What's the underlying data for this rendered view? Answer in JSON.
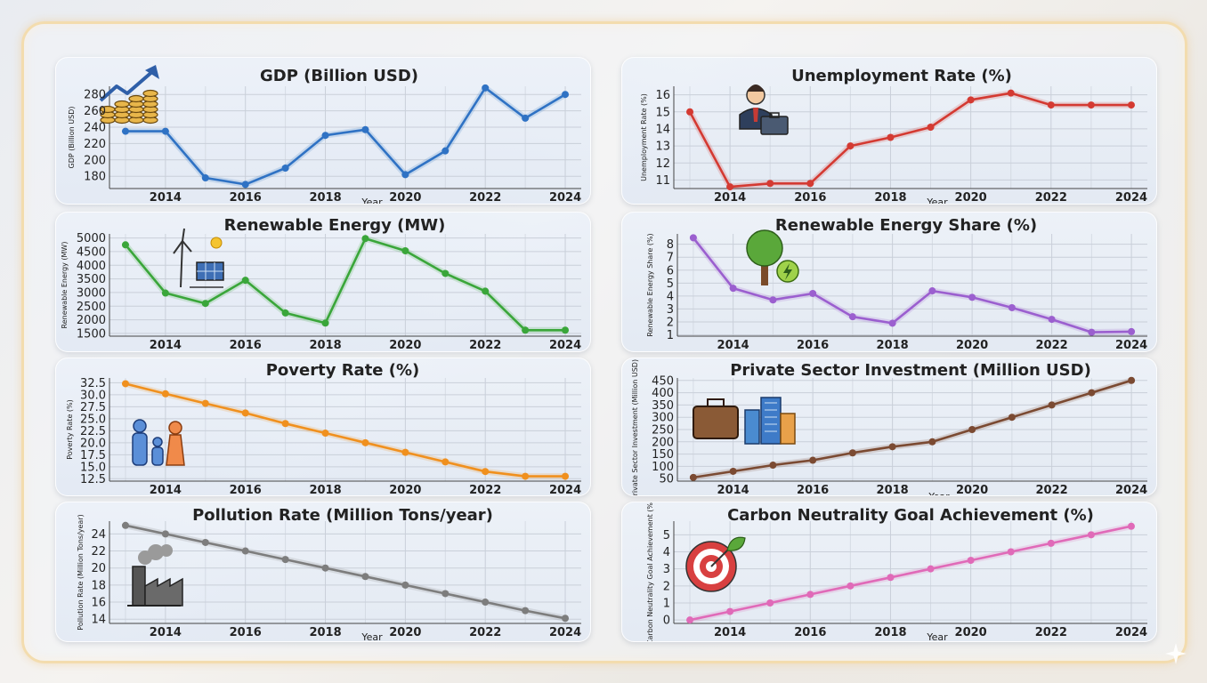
{
  "chart_data": [
    {
      "id": "gdp",
      "type": "line",
      "title": "GDP (Billion USD)",
      "xlabel": "Year",
      "ylabel": "GDP (Billion USD)",
      "color": "#2f72c4",
      "icon": "coins-growth-icon",
      "x": [
        2013,
        2014,
        2015,
        2016,
        2017,
        2018,
        2019,
        2020,
        2021,
        2022,
        2023,
        2024
      ],
      "values": [
        235,
        235,
        178,
        170,
        190,
        230,
        237,
        182,
        211,
        288,
        251,
        280
      ],
      "ylim": [
        165,
        290
      ],
      "yticks": [
        180,
        200,
        220,
        240,
        260,
        280
      ],
      "xticks": [
        2014,
        2016,
        2018,
        2020,
        2022,
        2024
      ],
      "grid": true
    },
    {
      "id": "unemployment",
      "type": "line",
      "title": "Unemployment Rate (%)",
      "xlabel": "Year",
      "ylabel": "Unemployment Rate (%)",
      "color": "#d43a32",
      "icon": "businessman-icon",
      "x": [
        2013,
        2014,
        2015,
        2016,
        2017,
        2018,
        2019,
        2020,
        2021,
        2022,
        2023,
        2024
      ],
      "values": [
        15.0,
        10.6,
        10.8,
        10.8,
        13.0,
        13.5,
        14.1,
        15.7,
        16.1,
        15.4,
        15.4,
        15.4
      ],
      "ylim": [
        10.5,
        16.5
      ],
      "yticks": [
        11,
        12,
        13,
        14,
        15,
        16
      ],
      "xticks": [
        2014,
        2016,
        2018,
        2020,
        2022,
        2024
      ],
      "grid": true
    },
    {
      "id": "renewable-energy",
      "type": "line",
      "title": "Renewable Energy (MW)",
      "xlabel": "Year",
      "ylabel": "Renewable Energy (MW)",
      "color": "#3aa63a",
      "icon": "wind-solar-icon",
      "x": [
        2013,
        2014,
        2015,
        2016,
        2017,
        2018,
        2019,
        2020,
        2021,
        2022,
        2023,
        2024
      ],
      "values": [
        4750,
        2980,
        2600,
        3450,
        2250,
        1880,
        4980,
        4530,
        3700,
        3050,
        1620,
        1620
      ],
      "ylim": [
        1400,
        5150
      ],
      "yticks": [
        1500,
        2000,
        2500,
        3000,
        3500,
        4000,
        4500,
        5000
      ],
      "xticks": [
        2014,
        2016,
        2018,
        2020,
        2022,
        2024
      ],
      "grid": true
    },
    {
      "id": "renewable-share",
      "type": "line",
      "title": "Renewable Energy Share (%)",
      "xlabel": "",
      "ylabel": "Renewable Energy Share (%)",
      "color": "#9b5fcf",
      "icon": "tree-energy-icon",
      "x": [
        2013,
        2014,
        2015,
        2016,
        2017,
        2018,
        2019,
        2020,
        2021,
        2022,
        2023,
        2024
      ],
      "values": [
        8.5,
        4.6,
        3.7,
        4.2,
        2.4,
        1.9,
        4.4,
        3.9,
        3.1,
        2.2,
        1.2,
        1.25
      ],
      "ylim": [
        0.9,
        8.8
      ],
      "yticks": [
        1,
        2,
        3,
        4,
        5,
        6,
        7,
        8
      ],
      "xticks": [
        2014,
        2016,
        2018,
        2020,
        2022,
        2024
      ],
      "grid": true
    },
    {
      "id": "poverty",
      "type": "line",
      "title": "Poverty Rate (%)",
      "xlabel": "",
      "ylabel": "Poverty Rate (%)",
      "color": "#f0901e",
      "icon": "family-icon",
      "x": [
        2013,
        2014,
        2015,
        2016,
        2017,
        2018,
        2019,
        2020,
        2021,
        2022,
        2023,
        2024
      ],
      "values": [
        32.3,
        30.2,
        28.2,
        26.2,
        24.0,
        22.0,
        20.0,
        18.0,
        16.0,
        14.0,
        13.0,
        13.0
      ],
      "ylim": [
        12.0,
        33.5
      ],
      "yticks": [
        12.5,
        15.0,
        17.5,
        20.0,
        22.5,
        25.0,
        27.5,
        30.0,
        32.5
      ],
      "xticks": [
        2014,
        2016,
        2018,
        2020,
        2022,
        2024
      ],
      "grid": true
    },
    {
      "id": "private-investment",
      "type": "line",
      "title": "Private Sector Investment (Million USD)",
      "xlabel": "Year",
      "ylabel": "Private Sector Investment (Million USD)",
      "color": "#7b4a32",
      "icon": "briefcase-buildings-icon",
      "x": [
        2013,
        2014,
        2015,
        2016,
        2017,
        2018,
        2019,
        2020,
        2021,
        2022,
        2023,
        2024
      ],
      "values": [
        55,
        80,
        105,
        125,
        155,
        180,
        200,
        250,
        300,
        350,
        400,
        450
      ],
      "ylim": [
        40,
        460
      ],
      "yticks": [
        50,
        100,
        150,
        200,
        250,
        300,
        350,
        400,
        450
      ],
      "xticks": [
        2014,
        2016,
        2018,
        2020,
        2022,
        2024
      ],
      "grid": true
    },
    {
      "id": "pollution",
      "type": "line",
      "title": "Pollution Rate (Million Tons/year)",
      "xlabel": "Year",
      "ylabel": "Pollution Rate (Million Tons/year)",
      "color": "#7d7d7d",
      "icon": "factory-icon",
      "x": [
        2013,
        2014,
        2015,
        2016,
        2017,
        2018,
        2019,
        2020,
        2021,
        2022,
        2023,
        2024
      ],
      "values": [
        25,
        24,
        23,
        22,
        21,
        20,
        19,
        18,
        17,
        16,
        15,
        14.1
      ],
      "ylim": [
        13.5,
        25.5
      ],
      "yticks": [
        14,
        16,
        18,
        20,
        22,
        24
      ],
      "xticks": [
        2014,
        2016,
        2018,
        2020,
        2022,
        2024
      ],
      "grid": true
    },
    {
      "id": "carbon-neutrality",
      "type": "line",
      "title": "Carbon Neutrality Goal Achievement (%)",
      "xlabel": "Year",
      "ylabel": "Carbon Neutrality Goal Achievement (%)",
      "color": "#e06ab8",
      "icon": "target-leaf-icon",
      "x": [
        2013,
        2014,
        2015,
        2016,
        2017,
        2018,
        2019,
        2020,
        2021,
        2022,
        2023,
        2024
      ],
      "values": [
        0,
        0.5,
        1.0,
        1.5,
        2.0,
        2.5,
        3.0,
        3.5,
        4.0,
        4.5,
        5.0,
        5.5
      ],
      "ylim": [
        -0.2,
        5.8
      ],
      "yticks": [
        0,
        1,
        2,
        3,
        4,
        5
      ],
      "xticks": [
        2014,
        2016,
        2018,
        2020,
        2022,
        2024
      ],
      "grid": true
    }
  ]
}
